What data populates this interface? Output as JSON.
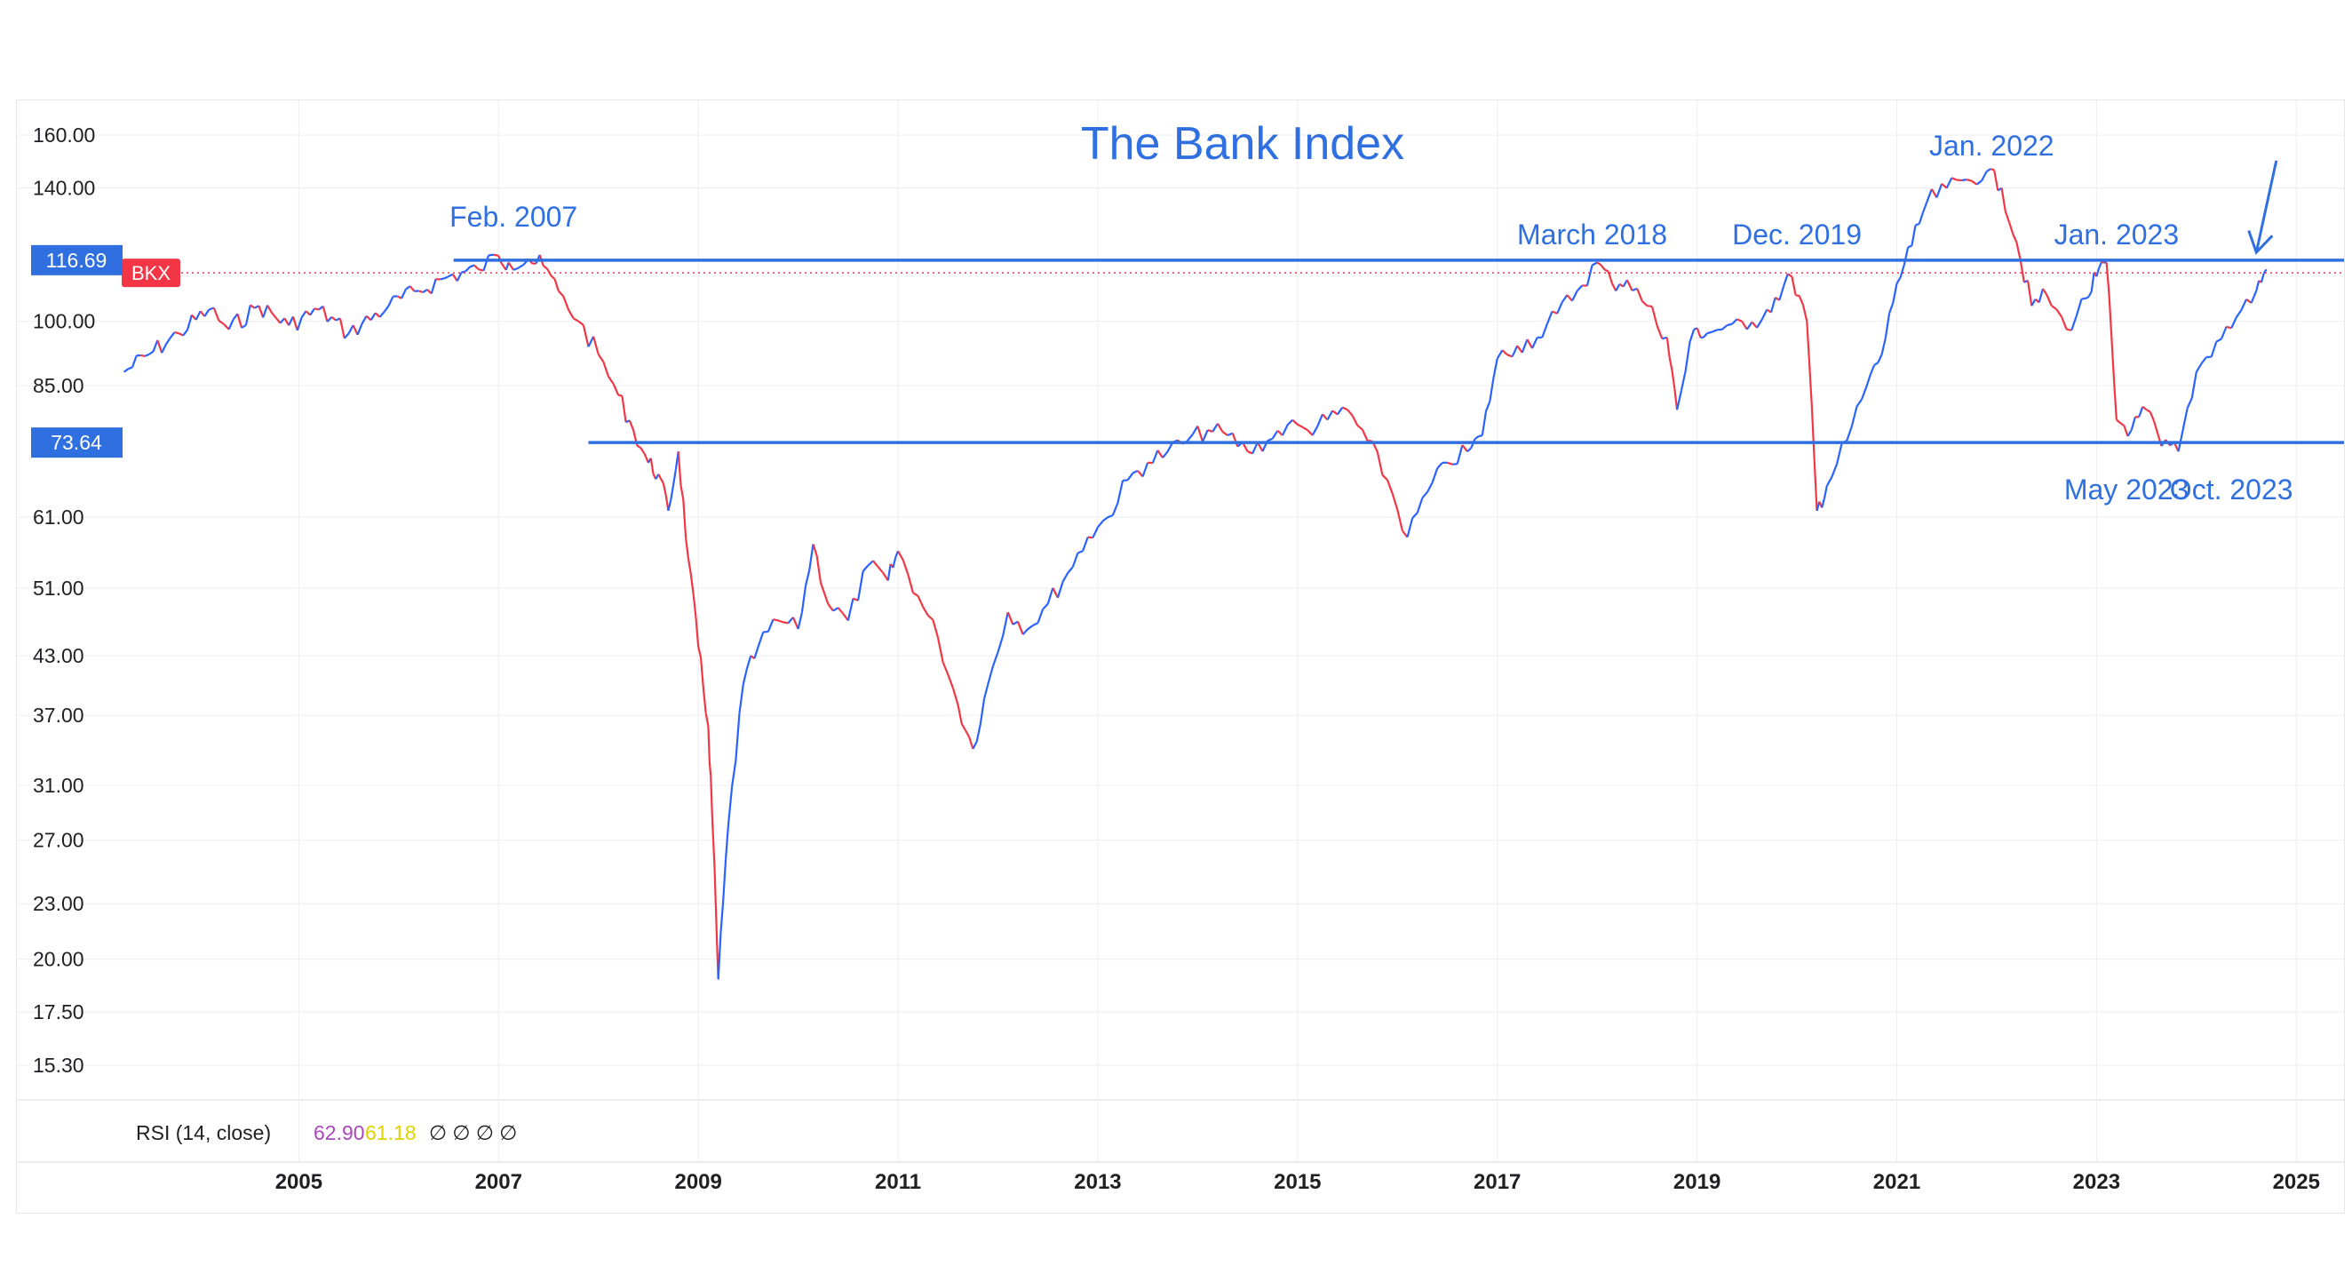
{
  "chart_data": {
    "type": "line",
    "title": "The Bank Index",
    "symbol": "BKX",
    "scale": "log",
    "ylim": [
      14.5,
      170
    ],
    "xlim": [
      2003.2,
      2025.3
    ],
    "y_ticks": [
      {
        "value": 160,
        "label": "160.00"
      },
      {
        "value": 140,
        "label": "140.00"
      },
      {
        "value": 100,
        "label": "100.00"
      },
      {
        "value": 85,
        "label": "85.00"
      },
      {
        "value": 61,
        "label": "61.00"
      },
      {
        "value": 51,
        "label": "51.00"
      },
      {
        "value": 43,
        "label": "43.00"
      },
      {
        "value": 37,
        "label": "37.00"
      },
      {
        "value": 31,
        "label": "31.00"
      },
      {
        "value": 27,
        "label": "27.00"
      },
      {
        "value": 23,
        "label": "23.00"
      },
      {
        "value": 20,
        "label": "20.00"
      },
      {
        "value": 17.5,
        "label": "17.50"
      },
      {
        "value": 15.3,
        "label": "15.30"
      }
    ],
    "x_ticks": [
      {
        "value": 2005,
        "label": "2005"
      },
      {
        "value": 2007,
        "label": "2007"
      },
      {
        "value": 2009,
        "label": "2009"
      },
      {
        "value": 2011,
        "label": "2011"
      },
      {
        "value": 2013,
        "label": "2013"
      },
      {
        "value": 2015,
        "label": "2015"
      },
      {
        "value": 2017,
        "label": "2017"
      },
      {
        "value": 2019,
        "label": "2019"
      },
      {
        "value": 2021,
        "label": "2021"
      },
      {
        "value": 2023,
        "label": "2023"
      },
      {
        "value": 2025,
        "label": "2025"
      }
    ],
    "price_tags": [
      {
        "value": 116.69,
        "label": "116.69",
        "color": "#2f6fe0"
      },
      {
        "value": 73.64,
        "label": "73.64",
        "color": "#2f6fe0"
      }
    ],
    "last_price": {
      "value": 113,
      "label": "BKX",
      "color": "#f23645"
    },
    "support_lines": [
      {
        "value": 116.69,
        "x_start": 2006.55,
        "color": "#2f6fe0"
      },
      {
        "value": 73.64,
        "x_start": 2007.9,
        "color": "#2f6fe0"
      }
    ],
    "series": [
      {
        "up_color": "#2962ff",
        "down_color": "#f23645",
        "x": [
          2003.25,
          2003.5,
          2003.8,
          2004.1,
          2004.3,
          2004.6,
          2004.9,
          2005.2,
          2005.5,
          2005.9,
          2006.2,
          2006.5,
          2006.8,
          2007.0,
          2007.1,
          2007.3,
          2007.45,
          2007.6,
          2007.8,
          2008.0,
          2008.2,
          2008.35,
          2008.5,
          2008.6,
          2008.7,
          2008.8,
          2008.9,
          2009.0,
          2009.1,
          2009.15,
          2009.2,
          2009.3,
          2009.45,
          2009.6,
          2009.8,
          2010.0,
          2010.15,
          2010.3,
          2010.5,
          2010.7,
          2010.9,
          2011.0,
          2011.2,
          2011.4,
          2011.6,
          2011.75,
          2011.9,
          2012.1,
          2012.3,
          2012.5,
          2012.7,
          2012.9,
          2013.1,
          2013.3,
          2013.5,
          2013.7,
          2013.9,
          2014.1,
          2014.3,
          2014.5,
          2014.7,
          2014.9,
          2015.1,
          2015.3,
          2015.5,
          2015.7,
          2015.9,
          2016.1,
          2016.3,
          2016.5,
          2016.7,
          2016.85,
          2017.0,
          2017.2,
          2017.4,
          2017.6,
          2017.8,
          2018.0,
          2018.15,
          2018.3,
          2018.5,
          2018.7,
          2018.8,
          2018.97,
          2019.1,
          2019.3,
          2019.5,
          2019.7,
          2019.95,
          2020.1,
          2020.2,
          2020.3,
          2020.5,
          2020.7,
          2020.85,
          2021.0,
          2021.15,
          2021.3,
          2021.5,
          2021.7,
          2021.9,
          2022.05,
          2022.2,
          2022.35,
          2022.5,
          2022.7,
          2022.9,
          2023.0,
          2023.1,
          2023.2,
          2023.35,
          2023.5,
          2023.65,
          2023.82,
          2024.0,
          2024.2,
          2024.4,
          2024.6,
          2024.7
        ],
        "values": [
          88,
          92,
          97,
          103,
          98,
          104,
          99,
          103,
          97,
          104,
          108,
          112,
          114,
          118,
          116,
          117,
          115,
          108,
          100,
          92,
          83,
          76,
          70,
          68,
          62,
          72,
          55,
          44,
          36,
          27,
          19,
          28,
          40,
          44,
          47,
          46,
          57,
          49,
          47,
          54,
          52,
          56,
          50,
          45,
          38,
          34,
          40,
          48,
          46,
          49,
          53,
          58,
          61,
          67,
          70,
          72,
          74,
          76,
          75,
          72,
          74,
          77,
          76,
          78,
          80,
          74,
          67,
          58,
          65,
          70,
          72,
          75,
          91,
          94,
          96,
          102,
          108,
          116,
          110,
          111,
          104,
          96,
          80,
          98,
          97,
          99,
          98,
          103,
          112,
          100,
          62,
          66,
          74,
          85,
          92,
          110,
          121,
          135,
          140,
          143,
          146,
          140,
          122,
          104,
          107,
          98,
          106,
          112,
          116,
          78,
          76,
          80,
          73,
          72,
          88,
          95,
          101,
          108,
          114
        ]
      }
    ],
    "annotations": [
      {
        "text": "Feb. 2007",
        "x": 2007.15,
        "y": 127
      },
      {
        "text": "March 2018",
        "x": 2017.95,
        "y": 121.5
      },
      {
        "text": "Dec. 2019",
        "x": 2020.0,
        "y": 121.5
      },
      {
        "text": "Jan. 2022",
        "x": 2021.95,
        "y": 152
      },
      {
        "text": "Jan. 2023",
        "x": 2023.2,
        "y": 121.5
      },
      {
        "text": "May 2023",
        "x": 2023.3,
        "y": 63.8
      },
      {
        "text": "Oct. 2023",
        "x": 2024.35,
        "y": 63.8
      }
    ],
    "arrow": {
      "from": [
        2024.8,
        150
      ],
      "to": [
        2024.6,
        119
      ]
    },
    "indicator": {
      "label": "RSI (14, close)",
      "value1": "62.90",
      "value1_color": "#ab47bc",
      "value2": "61.18",
      "value2_color": "#e0d200",
      "glyphs": "∅ ∅ ∅ ∅"
    }
  }
}
